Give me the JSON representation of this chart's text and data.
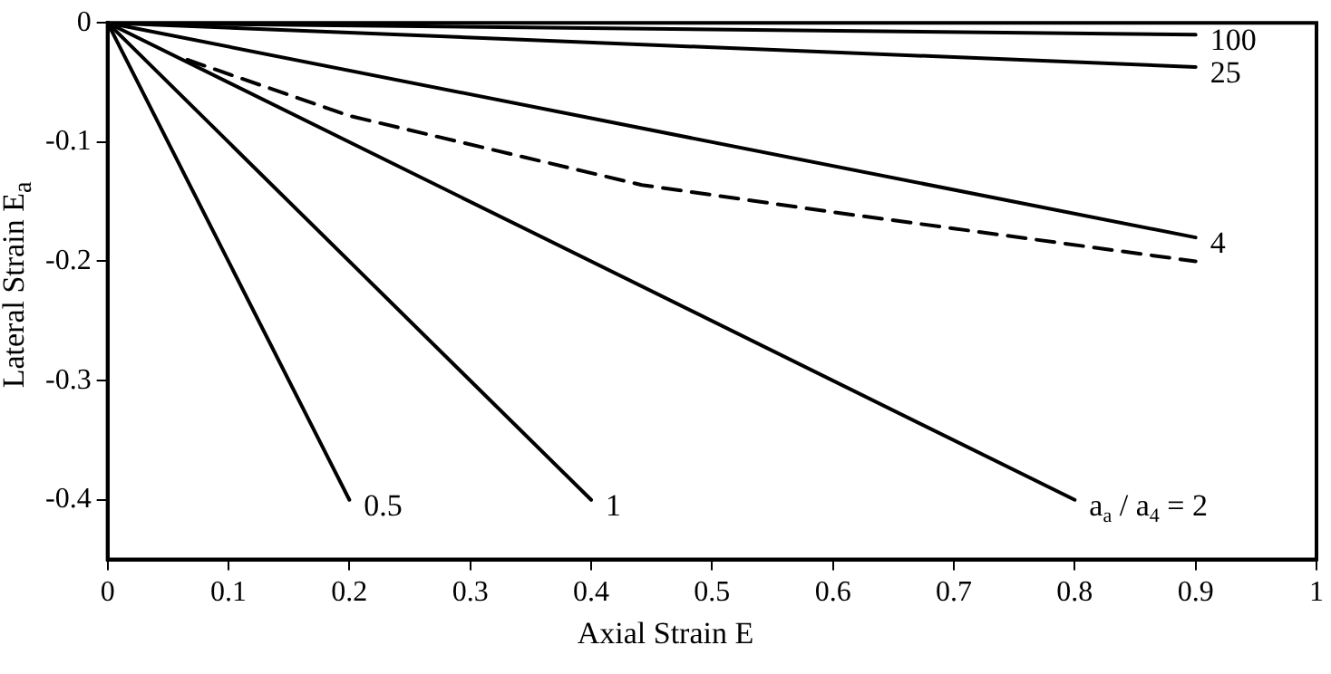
{
  "chart_data": {
    "type": "line",
    "xlabel": "Axial Strain E",
    "ylabel": "Lateral Strain E$_{a}$",
    "xlim": [
      0,
      1
    ],
    "ylim": [
      -0.45,
      0
    ],
    "xticks": [
      0,
      0.1,
      0.2,
      0.3,
      0.4,
      0.5,
      0.6,
      0.7,
      0.8,
      0.9,
      1
    ],
    "yticks": [
      0,
      -0.1,
      -0.2,
      -0.3,
      -0.4
    ],
    "grid": false,
    "legend": false,
    "marker": "none",
    "line_style": "solid",
    "color": "#000000",
    "series": [
      {
        "name": "100",
        "x": [
          0,
          0.9
        ],
        "values": [
          0,
          -0.01
        ]
      },
      {
        "name": "25",
        "x": [
          0,
          0.9
        ],
        "values": [
          0,
          -0.037
        ]
      },
      {
        "name": "4",
        "x": [
          0,
          0.9
        ],
        "values": [
          0,
          -0.18
        ]
      },
      {
        "line_style": "dashed",
        "x": [
          0.066,
          0.2,
          0.442,
          0.595,
          0.9
        ],
        "values": [
          -0.031,
          -0.078,
          -0.136,
          -0.158,
          -0.2
        ]
      },
      {
        "name": "a$_{a}$ / a$_{4}$ = 2",
        "x": [
          0,
          0.8
        ],
        "values": [
          0,
          -0.4
        ]
      },
      {
        "name": "1",
        "x": [
          0,
          0.4
        ],
        "values": [
          0,
          -0.4
        ]
      },
      {
        "name": "0.5",
        "x": [
          0,
          0.2
        ],
        "values": [
          0,
          -0.4
        ]
      }
    ]
  }
}
